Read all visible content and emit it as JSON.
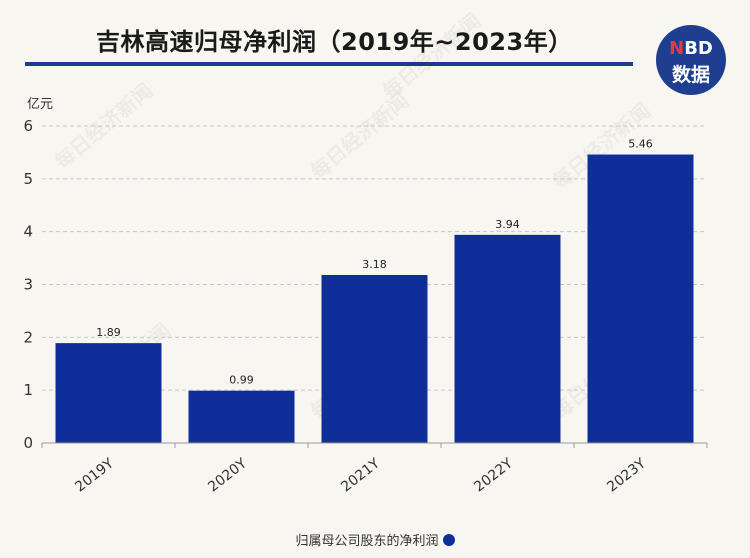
{
  "chart_data": {
    "type": "bar",
    "title": "吉林高速归母净利润（2019年~2023年）",
    "ylabel": "亿元",
    "categories": [
      "2019Y",
      "2020Y",
      "2021Y",
      "2022Y",
      "2023Y"
    ],
    "series": [
      {
        "name": "归属母公司股东的净利润",
        "values": [
          1.89,
          0.99,
          3.18,
          3.94,
          5.46
        ],
        "color": "#0f2e98"
      }
    ],
    "data_labels": [
      "1.89",
      "0.99",
      "3.18",
      "3.94",
      "5.46"
    ],
    "ylim": [
      0,
      6
    ],
    "yticks": [
      "0",
      "1",
      "2",
      "3",
      "4",
      "5",
      "6"
    ],
    "grid": true,
    "legend_position": "bottom"
  },
  "logo": {
    "top_text_n": "N",
    "top_text_rest": "BD",
    "bottom_text": "数据"
  },
  "watermark": "每日经济新闻",
  "colors": {
    "bar": "#0f2e98",
    "title_rule": "#1e3a8a",
    "background": "#f8f6f1"
  }
}
